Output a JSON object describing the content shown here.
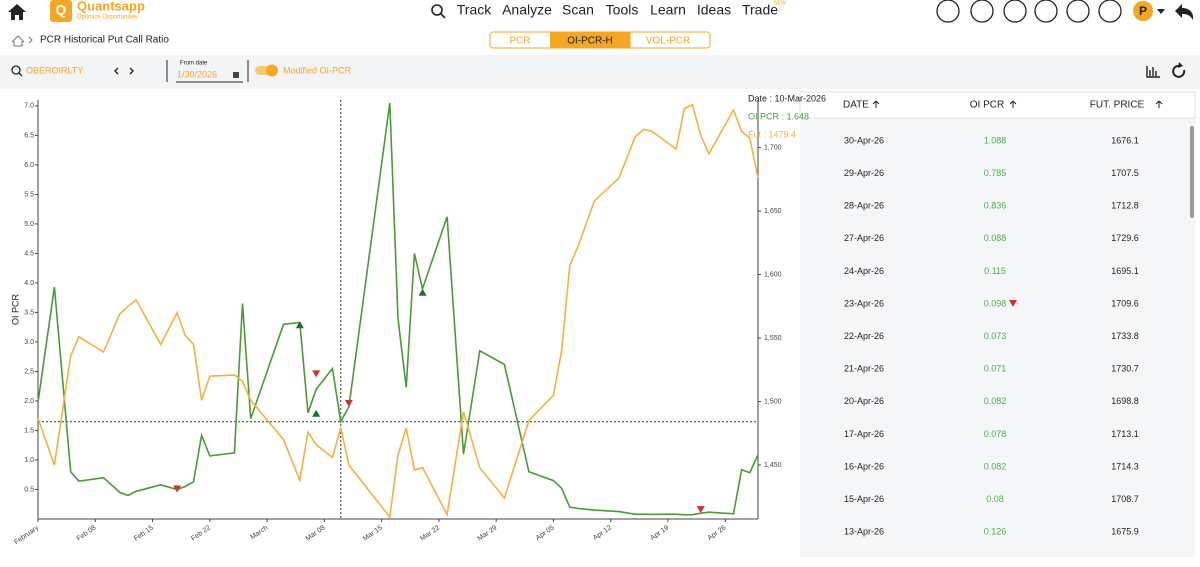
{
  "nav": {
    "brand": "Quantsapp",
    "tagline": "Optimize Opportunities",
    "items": [
      "Track",
      "Analyze",
      "Scan",
      "Tools",
      "Learn",
      "Ideas",
      "Trade"
    ],
    "badge": "NEW",
    "avatar": "P"
  },
  "breadcrumb": "PCR Historical Put Call Ratio",
  "tabs": [
    "PCR",
    "OI-PCR-H",
    "VOL-PCR"
  ],
  "toolbar": {
    "symbol": "OBEROIRLTY",
    "date_label": "From date",
    "date": "1/30/2026",
    "toggle": "Modified OI-PCR"
  },
  "tooltip": [
    "Date : 10-Mar-2026",
    "OI PCR : 1.648",
    "Fut : 1479.4"
  ],
  "chart_data": {
    "type": "line",
    "ylabel": "OI PCR",
    "x": [
      "2026-02-01",
      "2026-02-03",
      "2026-02-05",
      "2026-02-06",
      "2026-02-09",
      "2026-02-11",
      "2026-02-12",
      "2026-02-13",
      "2026-02-16",
      "2026-02-18",
      "2026-02-19",
      "2026-02-20",
      "2026-02-21",
      "2026-02-22",
      "2026-02-25",
      "2026-02-26",
      "2026-02-27",
      "2026-03-03",
      "2026-03-05",
      "2026-03-06",
      "2026-03-07",
      "2026-03-09",
      "2026-03-10",
      "2026-03-11",
      "2026-03-16",
      "2026-03-17",
      "2026-03-18",
      "2026-03-19",
      "2026-03-20",
      "2026-03-23",
      "2026-03-25",
      "2026-03-27",
      "2026-03-30",
      "2026-04-02",
      "2026-04-05",
      "2026-04-06",
      "2026-04-07",
      "2026-04-08",
      "2026-04-10",
      "2026-04-13",
      "2026-04-15",
      "2026-04-16",
      "2026-04-17",
      "2026-04-20",
      "2026-04-21",
      "2026-04-22",
      "2026-04-23",
      "2026-04-24",
      "2026-04-27",
      "2026-04-28",
      "2026-04-29",
      "2026-04-30"
    ],
    "series": [
      {
        "name": "OI PCR",
        "color": "#4a9a3a",
        "values": [
          1.98,
          3.93,
          0.8,
          0.64,
          0.7,
          0.45,
          0.4,
          0.47,
          0.58,
          0.5,
          0.55,
          0.63,
          1.42,
          1.07,
          1.12,
          3.65,
          1.7,
          3.3,
          3.33,
          1.8,
          2.2,
          2.55,
          1.648,
          1.9,
          7.05,
          3.4,
          2.23,
          4.5,
          3.9,
          5.12,
          1.1,
          2.85,
          2.62,
          0.8,
          0.65,
          0.52,
          0.2,
          0.18,
          0.15,
          0.126,
          0.08,
          0.082,
          0.078,
          0.082,
          0.071,
          0.073,
          0.098,
          0.115,
          0.088,
          0.836,
          0.785,
          1.088
        ]
      },
      {
        "name": "Fut",
        "color": "#f5b041",
        "axis": "y2",
        "values": [
          1487,
          1450,
          1536,
          1551,
          1539,
          1569,
          1575,
          1580,
          1545,
          1570,
          1552,
          1545,
          1501,
          1520,
          1521,
          1516,
          1501,
          1470,
          1438,
          1476,
          1466,
          1456,
          1479.4,
          1450,
          1409,
          1458,
          1479,
          1446,
          1448,
          1411,
          1492,
          1448,
          1424,
          1485,
          1505,
          1540,
          1607,
          1622,
          1658,
          1675.9,
          1708.7,
          1714.3,
          1713.1,
          1698.8,
          1730.7,
          1733.8,
          1709.6,
          1695.1,
          1729.6,
          1712.8,
          1707.5,
          1676.1
        ]
      }
    ],
    "xlim": [
      "2026-02-01",
      "2026-04-30"
    ],
    "xticks": [
      {
        "value": "2026-02-01",
        "label": "February"
      },
      {
        "value": "2026-02-08",
        "label": "Feb 08"
      },
      {
        "value": "2026-02-15",
        "label": "Feb 15"
      },
      {
        "value": "2026-02-22",
        "label": "Feb 22"
      },
      {
        "value": "2026-03-01",
        "label": "March"
      },
      {
        "value": "2026-03-08",
        "label": "Mar 08"
      },
      {
        "value": "2026-03-15",
        "label": "Mar 15"
      },
      {
        "value": "2026-03-22",
        "label": "Mar 22"
      },
      {
        "value": "2026-03-29",
        "label": "Mar 29"
      },
      {
        "value": "2026-04-05",
        "label": "Apr 05"
      },
      {
        "value": "2026-04-12",
        "label": "Apr 12"
      },
      {
        "value": "2026-04-19",
        "label": "Apr 19"
      },
      {
        "value": "2026-04-26",
        "label": "Apr 26"
      }
    ],
    "ylim": [
      0,
      7.1
    ],
    "yticks": [
      0.5,
      {
        "value": 1,
        "label": "1.0"
      },
      1.5,
      {
        "value": 2,
        "label": "2.0"
      },
      2.5,
      {
        "value": 3,
        "label": "3.0"
      },
      3.5,
      {
        "value": 4,
        "label": "4.0"
      },
      4.5,
      {
        "value": 5,
        "label": "5.0"
      },
      5.5,
      {
        "value": 6,
        "label": "6.0"
      },
      6.5,
      {
        "value": 7,
        "label": "7.0"
      }
    ],
    "y2lim": [
      1407.5,
      1737.5
    ],
    "y2ticks": [
      {
        "value": 1450,
        "label": "1,450"
      },
      {
        "value": 1500,
        "label": "1,500"
      },
      {
        "value": 1550,
        "label": "1,550"
      },
      {
        "value": 1600,
        "label": "1,600"
      },
      {
        "value": 1650,
        "label": "1,650"
      },
      {
        "value": 1700,
        "label": "1,700"
      }
    ],
    "crosshair": {
      "x": "2026-03-10",
      "y": 1.648
    },
    "markers": [
      {
        "x": "2026-02-18",
        "y": 0.5,
        "color": "#d32f2f"
      },
      {
        "x": "2026-03-05",
        "y": 3.3,
        "color": "#1b6e2d"
      },
      {
        "x": "2026-03-07",
        "y": 2.45,
        "color": "#d32f2f"
      },
      {
        "x": "2026-03-07",
        "y": 1.8,
        "color": "#1b6e2d"
      },
      {
        "x": "2026-03-11",
        "y": 1.95,
        "color": "#d32f2f"
      },
      {
        "x": "2026-03-20",
        "y": 3.85,
        "color": "#1b6e2d"
      },
      {
        "x": "2026-04-23",
        "y": 0.15,
        "color": "#d32f2f"
      }
    ]
  },
  "table": {
    "headers": [
      "DATE",
      "OI PCR",
      "FUT. PRICE"
    ],
    "rows": [
      [
        "30-Apr-26",
        1.088,
        1676.1
      ],
      [
        "29-Apr-26",
        0.785,
        1707.5
      ],
      [
        "28-Apr-26",
        0.836,
        1712.8
      ],
      [
        "27-Apr-26",
        0.088,
        1729.6
      ],
      [
        "24-Apr-26",
        0.115,
        1695.1
      ],
      [
        "23-Apr-26",
        0.098,
        1709.6
      ],
      [
        "22-Apr-26",
        0.073,
        1733.8
      ],
      [
        "21-Apr-26",
        0.071,
        1730.7
      ],
      [
        "20-Apr-26",
        0.082,
        1698.8
      ],
      [
        "17-Apr-26",
        0.078,
        1713.1
      ],
      [
        "16-Apr-26",
        0.082,
        1714.3
      ],
      [
        "15-Apr-26",
        0.08,
        1708.7
      ],
      [
        "13-Apr-26",
        0.126,
        1675.9
      ]
    ],
    "flag_row": 5,
    "flag_color": "#d32f2f"
  }
}
